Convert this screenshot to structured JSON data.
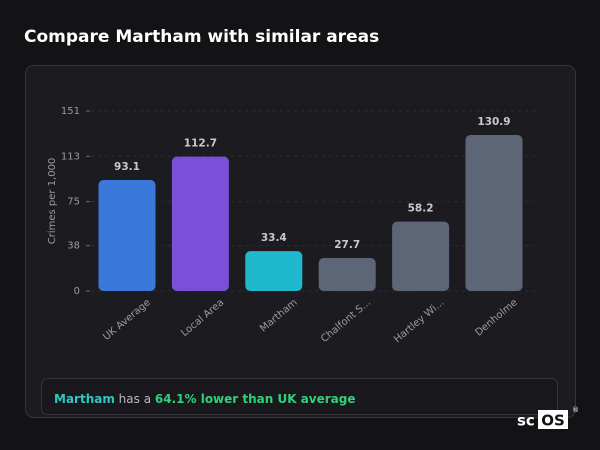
{
  "title": "Compare Martham with similar areas",
  "chart_data": {
    "type": "bar",
    "y_label": "Crimes per 1,000",
    "categories": [
      "UK Average",
      "Local Area",
      "Martham",
      "Chalfont S...",
      "Hartley Wi...",
      "Denholme"
    ],
    "values": [
      93.1,
      112.7,
      33.4,
      27.7,
      58.2,
      130.9
    ],
    "colors": [
      "#3b78dc",
      "#7b4fd8",
      "#1fb8cc",
      "#5c6677",
      "#5c6677",
      "#5c6677"
    ],
    "ylim": [
      0,
      151
    ],
    "yticks": [
      0,
      38,
      75,
      113,
      151
    ],
    "grid": true
  },
  "note": {
    "area": "Martham",
    "text": "has a",
    "highlight": "64.1% lower than UK average"
  },
  "logo": {
    "prefix": "sc",
    "boxed": "OS",
    "mark": "®"
  }
}
